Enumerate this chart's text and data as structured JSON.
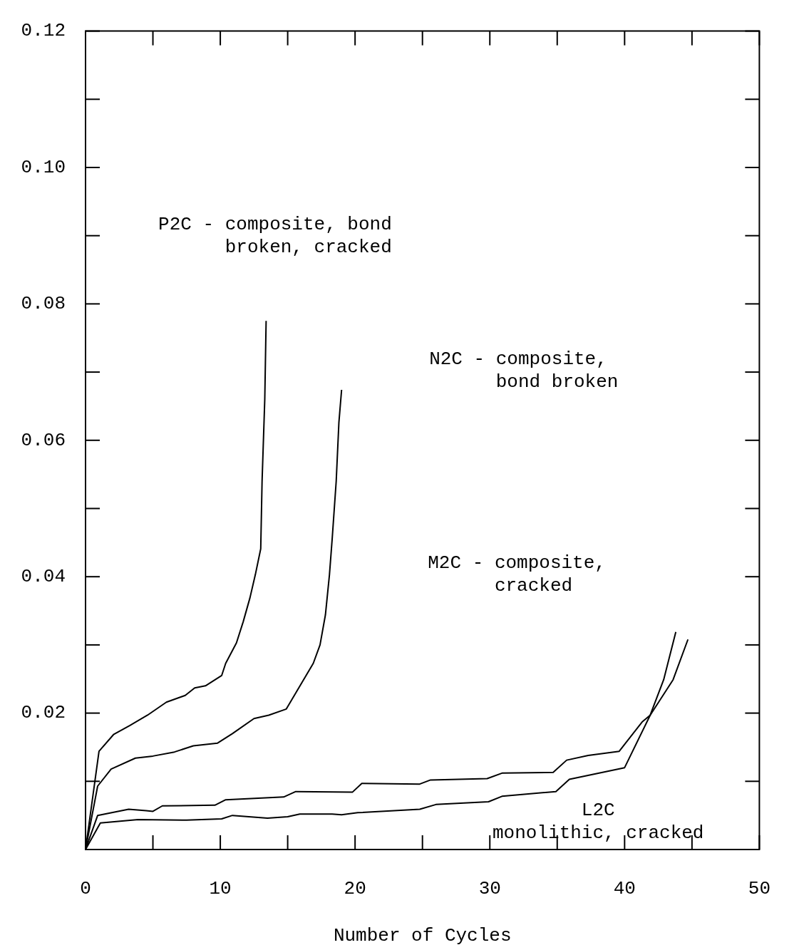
{
  "chart_data": {
    "type": "line",
    "xlabel": "Number of Cycles",
    "xlim": [
      0,
      50
    ],
    "ylim": [
      0,
      0.12
    ],
    "xticks": [
      0,
      10,
      20,
      30,
      40,
      50
    ],
    "yticks": [
      0.02,
      0.04,
      0.06,
      0.08,
      {
        "value": 0.1,
        "label": "0.10"
      },
      0.12
    ],
    "series": [
      {
        "color": "#000000",
        "x": [
          0,
          1.0,
          2.1,
          3.3,
          4.6,
          6.0,
          7.4,
          8.1,
          8.9,
          10.1,
          10.4,
          11.2,
          11.7,
          12.2,
          12.6,
          13.0,
          13.1,
          13.3,
          13.4
        ],
        "values": [
          0,
          0.0144,
          0.0169,
          0.0182,
          0.0197,
          0.0216,
          0.0226,
          0.0237,
          0.024,
          0.0255,
          0.0273,
          0.0303,
          0.0334,
          0.0369,
          0.0403,
          0.0441,
          0.054,
          0.066,
          0.0775
        ]
      },
      {
        "color": "#000000",
        "x": [
          0,
          0.9,
          1.9,
          3.7,
          5.0,
          6.6,
          8.0,
          9.8,
          10.9,
          12.5,
          13.6,
          14.9,
          16.9,
          17.4,
          17.8,
          18.1,
          18.3,
          18.6,
          18.8,
          19.0
        ],
        "values": [
          0,
          0.0093,
          0.0118,
          0.0134,
          0.0137,
          0.0143,
          0.0152,
          0.0156,
          0.017,
          0.0192,
          0.0197,
          0.0206,
          0.0273,
          0.03,
          0.0344,
          0.0403,
          0.0455,
          0.054,
          0.0626,
          0.0674
        ]
      },
      {
        "color": "#000000",
        "x": [
          0,
          0.9,
          3.2,
          4.5,
          5.0,
          5.7,
          9.6,
          10.4,
          14.7,
          15.6,
          19.8,
          20.5,
          24.8,
          25.6,
          29.8,
          30.9,
          34.7,
          35.7,
          37.3,
          39.6,
          41.3,
          41.9,
          43.6,
          44.7
        ],
        "values": [
          0,
          0.005,
          0.0059,
          0.0057,
          0.0056,
          0.0064,
          0.0065,
          0.0073,
          0.0077,
          0.0085,
          0.0084,
          0.0097,
          0.0096,
          0.0102,
          0.0104,
          0.0112,
          0.0113,
          0.0131,
          0.0138,
          0.0144,
          0.0187,
          0.0197,
          0.0249,
          0.0308
        ]
      },
      {
        "color": "#000000",
        "x": [
          0,
          1.1,
          3.9,
          7.5,
          10.1,
          10.9,
          13.5,
          15.0,
          15.9,
          18.3,
          19.0,
          20.2,
          24.8,
          26.0,
          29.9,
          30.9,
          34.9,
          35.9,
          40.0,
          41.9,
          42.9,
          43.8
        ],
        "values": [
          0,
          0.0039,
          0.0044,
          0.0043,
          0.0045,
          0.005,
          0.0046,
          0.0048,
          0.0052,
          0.0052,
          0.0051,
          0.0054,
          0.0059,
          0.0066,
          0.007,
          0.0078,
          0.0085,
          0.0103,
          0.012,
          0.0197,
          0.0249,
          0.0319
        ]
      }
    ],
    "annotations": [
      "P2C - composite, bond\n      broken, cracked",
      "N2C - composite,\n      bond broken",
      "M2C - composite,\n      cracked",
      "        L2C\nmonolithic, cracked"
    ]
  }
}
